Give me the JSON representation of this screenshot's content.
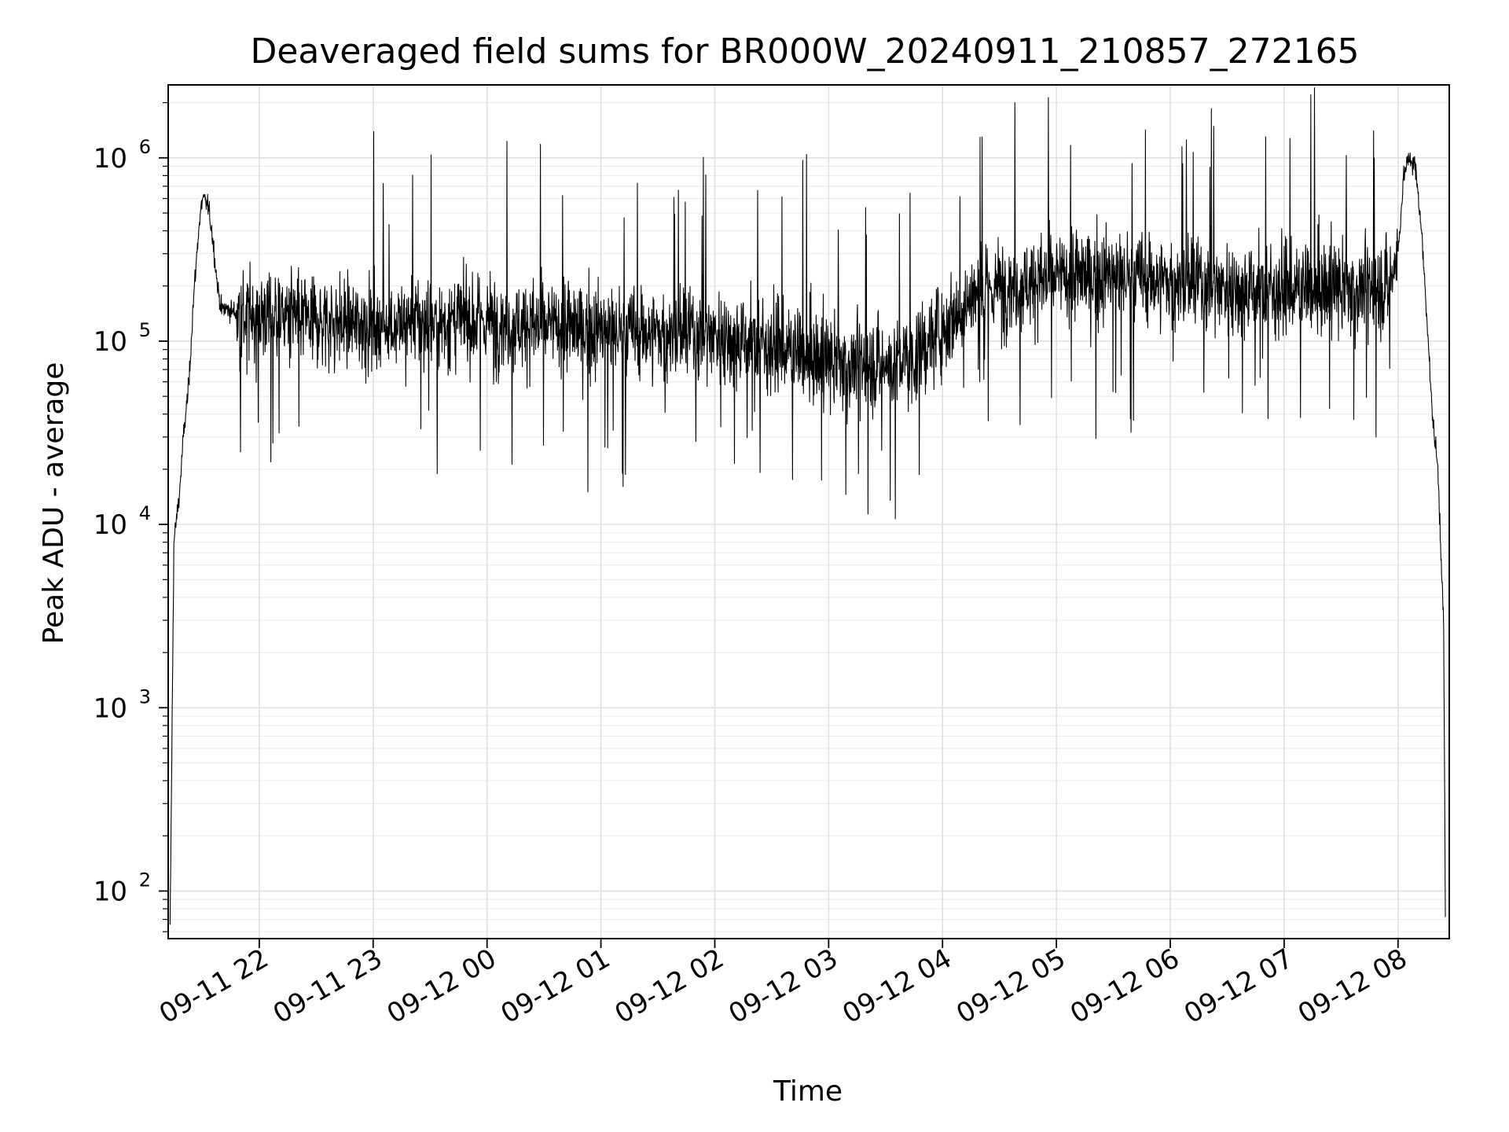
{
  "chart_data": {
    "type": "line",
    "title": "Deaveraged field sums for BR000W_20240911_210857_272165",
    "xlabel": "Time",
    "ylabel": "Peak ADU - average",
    "y_scale": "log",
    "ylim": [
      55,
      2500000
    ],
    "xlim": [
      "2024-09-11 21:12",
      "2024-09-12 08:27"
    ],
    "grid": "major and minor",
    "legend": "none",
    "line_color": "#000000",
    "x_ticks": [
      {
        "t": "2024-09-11 22:00",
        "label": "09-11 22"
      },
      {
        "t": "2024-09-11 23:00",
        "label": "09-11 23"
      },
      {
        "t": "2024-09-12 00:00",
        "label": "09-12 00"
      },
      {
        "t": "2024-09-12 01:00",
        "label": "09-12 01"
      },
      {
        "t": "2024-09-12 02:00",
        "label": "09-12 02"
      },
      {
        "t": "2024-09-12 03:00",
        "label": "09-12 03"
      },
      {
        "t": "2024-09-12 04:00",
        "label": "09-12 04"
      },
      {
        "t": "2024-09-12 05:00",
        "label": "09-12 05"
      },
      {
        "t": "2024-09-12 06:00",
        "label": "09-12 06"
      },
      {
        "t": "2024-09-12 07:00",
        "label": "09-12 07"
      },
      {
        "t": "2024-09-12 08:00",
        "label": "09-12 08"
      }
    ],
    "y_ticks": [
      {
        "value": 100,
        "base": "10",
        "exp": "2"
      },
      {
        "value": 1000,
        "base": "10",
        "exp": "3"
      },
      {
        "value": 10000,
        "base": "10",
        "exp": "4"
      },
      {
        "value": 100000,
        "base": "10",
        "exp": "5"
      },
      {
        "value": 1000000,
        "base": "10",
        "exp": "6"
      }
    ],
    "series": [
      {
        "x": [
          "2024-09-11 21:13",
          "2024-09-11 21:15",
          "2024-09-11 21:18",
          "2024-09-11 21:20",
          "2024-09-11 21:23",
          "2024-09-11 21:25",
          "2024-09-11 21:28",
          "2024-09-11 21:30",
          "2024-09-11 21:33",
          "2024-09-11 21:35",
          "2024-09-11 21:38",
          "2024-09-11 21:40",
          "2024-09-11 21:43",
          "2024-09-11 21:46",
          "2024-09-11 21:50",
          "2024-09-11 22:00",
          "2024-09-11 22:15",
          "2024-09-11 22:30",
          "2024-09-11 22:45",
          "2024-09-11 23:00",
          "2024-09-11 23:30",
          "2024-09-12 00:00",
          "2024-09-12 00:30",
          "2024-09-12 01:00",
          "2024-09-12 01:30",
          "2024-09-12 02:00",
          "2024-09-12 02:30",
          "2024-09-12 03:00",
          "2024-09-12 03:30",
          "2024-09-12 03:45",
          "2024-09-12 04:00",
          "2024-09-12 04:15",
          "2024-09-12 04:30",
          "2024-09-12 05:00",
          "2024-09-12 05:30",
          "2024-09-12 06:00",
          "2024-09-12 06:30",
          "2024-09-12 07:00",
          "2024-09-12 07:30",
          "2024-09-12 07:55",
          "2024-09-12 08:00",
          "2024-09-12 08:03",
          "2024-09-12 08:06",
          "2024-09-12 08:09",
          "2024-09-12 08:12",
          "2024-09-12 08:15",
          "2024-09-12 08:18",
          "2024-09-12 08:21",
          "2024-09-12 08:24",
          "2024-09-12 08:25"
        ],
        "y": [
          60,
          8000,
          15000,
          30000,
          60000,
          150000,
          400000,
          600000,
          550000,
          400000,
          200000,
          150000,
          150000,
          145000,
          140000,
          140000,
          135000,
          130000,
          125000,
          125000,
          125000,
          130000,
          120000,
          115000,
          110000,
          110000,
          95000,
          75000,
          75000,
          80000,
          120000,
          170000,
          200000,
          220000,
          230000,
          210000,
          200000,
          190000,
          190000,
          200000,
          300000,
          800000,
          1000000,
          900000,
          450000,
          150000,
          40000,
          20000,
          3000,
          60
        ],
        "noise_dex": 0.18
      }
    ]
  }
}
